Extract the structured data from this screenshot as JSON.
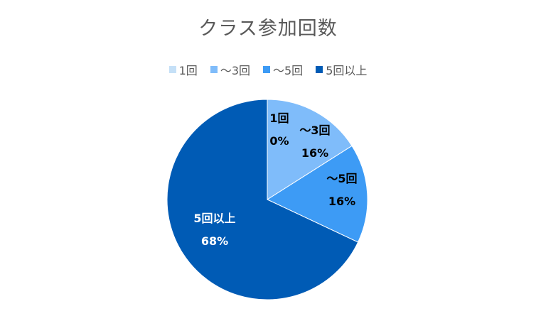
{
  "chart_data": {
    "type": "pie",
    "title": "クラス参加回数",
    "legend_position": "top",
    "slices": [
      {
        "label": "1回",
        "value": 0,
        "percent_label": "0%",
        "color": "#C5E0F7"
      },
      {
        "label": "〜3回",
        "value": 16,
        "percent_label": "16%",
        "color": "#7FBCFA"
      },
      {
        "label": "〜5回",
        "value": 16,
        "percent_label": "16%",
        "color": "#3D9BF5"
      },
      {
        "label": "5回以上",
        "value": 68,
        "percent_label": "68%",
        "color": "#005BB5"
      }
    ]
  }
}
